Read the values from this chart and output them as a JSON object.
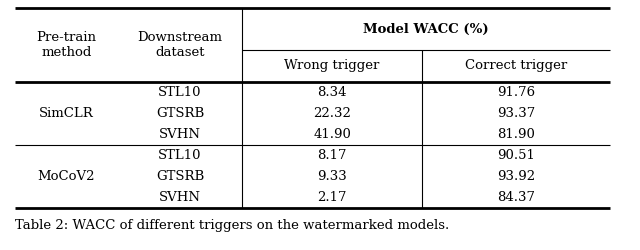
{
  "title": "Table 2: WACC of different triggers on the watermarked models.",
  "rows": [
    [
      "SimCLR",
      "STL10",
      "8.34",
      "91.76"
    ],
    [
      "",
      "GTSRB",
      "22.32",
      "93.37"
    ],
    [
      "",
      "SVHN",
      "41.90",
      "81.90"
    ],
    [
      "MoCoV2",
      "STL10",
      "8.17",
      "90.51"
    ],
    [
      "",
      "GTSRB",
      "9.33",
      "93.92"
    ],
    [
      "",
      "SVHN",
      "2.17",
      "84.37"
    ]
  ],
  "bg_color": "#ffffff",
  "text_color": "#000000",
  "fontsize": 9.5,
  "caption_fontsize": 9.5,
  "header1_bold": true
}
